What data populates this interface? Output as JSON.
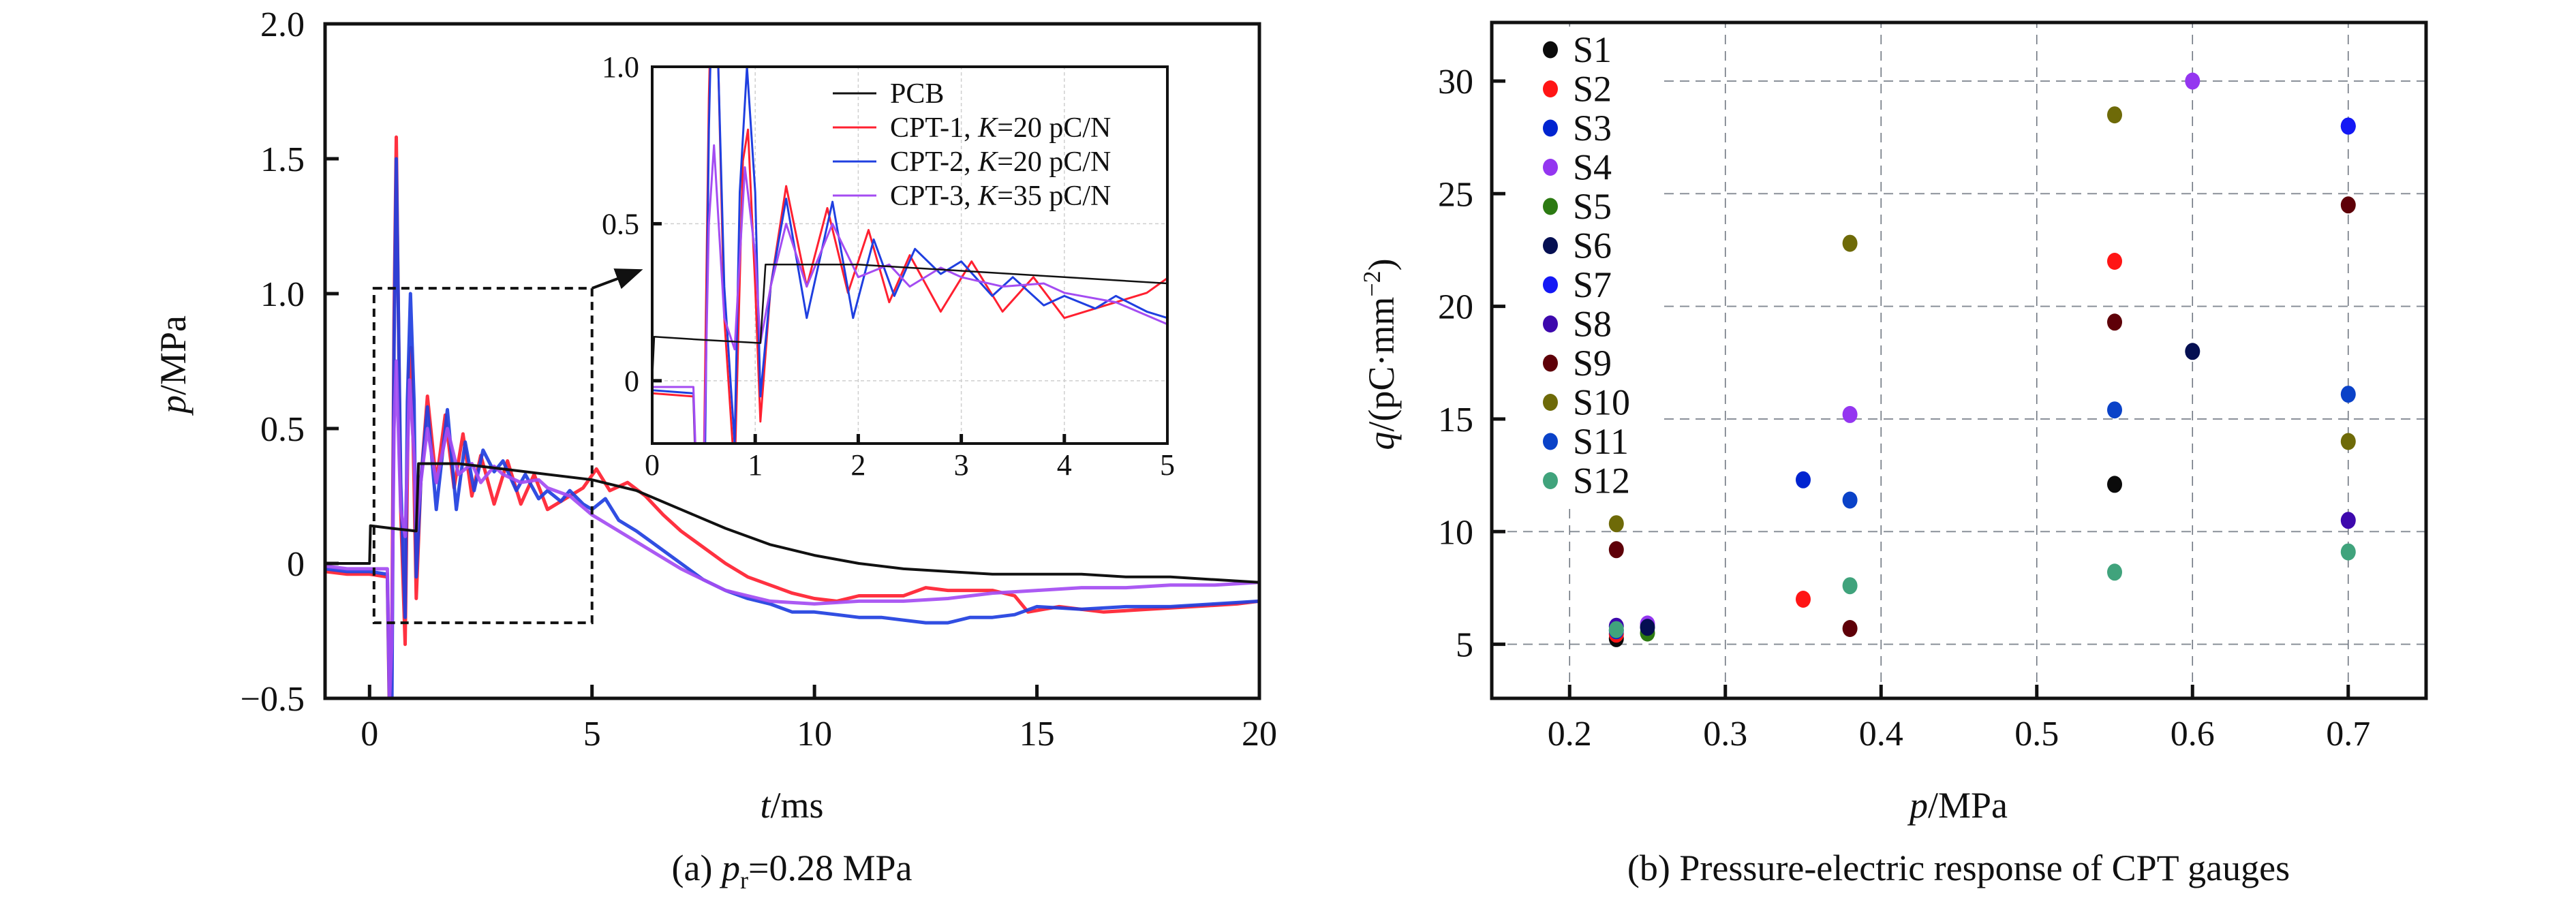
{
  "figure": {
    "caption_a": "(a) p r=0.28 MPa",
    "caption_a_parts": {
      "prefix": "(a) ",
      "var": "p",
      "sub": "r",
      "suffix": "=0.28 MPa"
    },
    "caption_b": "(b) Pressure-electric response of CPT gauges"
  },
  "chart_data": [
    {
      "id": "a",
      "type": "line",
      "title": "(a) p_r=0.28 MPa",
      "xlabel": {
        "var": "t",
        "unit": "/ms"
      },
      "ylabel": {
        "var": "p",
        "unit": "/MPa"
      },
      "xlim": [
        -1,
        20
      ],
      "ylim": [
        -0.5,
        2.0
      ],
      "xticks": [
        0,
        5,
        10,
        15,
        20
      ],
      "xtick_labels": [
        "0",
        "5",
        "10",
        "15",
        "20"
      ],
      "yticks": [
        -0.5,
        0,
        0.5,
        1.0,
        1.5,
        2.0
      ],
      "ytick_labels": [
        "−0.5",
        "0",
        "0.5",
        "1.0",
        "1.5",
        "2.0"
      ],
      "grid": false,
      "zoom_box": {
        "x": [
          0.1,
          5.0
        ],
        "y": [
          -0.22,
          1.02
        ]
      },
      "legend": {
        "placement": "inset-top-right",
        "entries": [
          {
            "label_pre": "PCB",
            "label_k": "",
            "label_post": ""
          },
          {
            "label_pre": "CPT-1, ",
            "label_k": "K",
            "label_post": "=20 pC/N"
          },
          {
            "label_pre": "CPT-2, ",
            "label_k": "K",
            "label_post": "=20 pC/N"
          },
          {
            "label_pre": "CPT-3, ",
            "label_k": "K",
            "label_post": "=35 pC/N"
          }
        ]
      },
      "series": [
        {
          "name": "CPT-1, K=20 pC/N",
          "color": "#ff2030",
          "points": [
            [
              -1,
              -0.03
            ],
            [
              -0.5,
              -0.04
            ],
            [
              0,
              -0.04
            ],
            [
              0.4,
              -0.05
            ],
            [
              0.45,
              -0.6
            ],
            [
              0.5,
              -0.3
            ],
            [
              0.55,
              0.9
            ],
            [
              0.6,
              1.58
            ],
            [
              0.7,
              0.2
            ],
            [
              0.8,
              -0.3
            ],
            [
              0.88,
              0.7
            ],
            [
              0.93,
              0.8
            ],
            [
              1.0,
              0.3
            ],
            [
              1.05,
              -0.13
            ],
            [
              1.15,
              0.3
            ],
            [
              1.3,
              0.62
            ],
            [
              1.5,
              0.3
            ],
            [
              1.7,
              0.55
            ],
            [
              1.9,
              0.28
            ],
            [
              2.1,
              0.48
            ],
            [
              2.3,
              0.25
            ],
            [
              2.5,
              0.4
            ],
            [
              2.8,
              0.22
            ],
            [
              3.1,
              0.38
            ],
            [
              3.4,
              0.22
            ],
            [
              3.7,
              0.33
            ],
            [
              4.0,
              0.2
            ],
            [
              4.4,
              0.24
            ],
            [
              4.8,
              0.28
            ],
            [
              5.1,
              0.35
            ],
            [
              5.4,
              0.27
            ],
            [
              5.8,
              0.3
            ],
            [
              6.2,
              0.25
            ],
            [
              6.6,
              0.18
            ],
            [
              7,
              0.12
            ],
            [
              7.5,
              0.06
            ],
            [
              8,
              0.0
            ],
            [
              8.5,
              -0.05
            ],
            [
              9,
              -0.08
            ],
            [
              9.5,
              -0.11
            ],
            [
              10,
              -0.13
            ],
            [
              10.5,
              -0.14
            ],
            [
              11,
              -0.12
            ],
            [
              12,
              -0.12
            ],
            [
              12.5,
              -0.09
            ],
            [
              13,
              -0.1
            ],
            [
              14,
              -0.1
            ],
            [
              14.5,
              -0.12
            ],
            [
              14.8,
              -0.18
            ],
            [
              15.5,
              -0.16
            ],
            [
              16.5,
              -0.18
            ],
            [
              17.5,
              -0.17
            ],
            [
              18.5,
              -0.16
            ],
            [
              19.5,
              -0.15
            ],
            [
              20,
              -0.14
            ]
          ]
        },
        {
          "name": "CPT-2, K=20 pC/N",
          "color": "#1f3fe0",
          "points": [
            [
              -1,
              -0.02
            ],
            [
              -0.5,
              -0.03
            ],
            [
              0,
              -0.03
            ],
            [
              0.4,
              -0.04
            ],
            [
              0.45,
              -0.55
            ],
            [
              0.5,
              -0.6
            ],
            [
              0.55,
              0.8
            ],
            [
              0.6,
              1.5
            ],
            [
              0.7,
              0.3
            ],
            [
              0.8,
              -0.2
            ],
            [
              0.85,
              0.6
            ],
            [
              0.92,
              1.0
            ],
            [
              1.0,
              0.6
            ],
            [
              1.05,
              -0.05
            ],
            [
              1.15,
              0.3
            ],
            [
              1.3,
              0.58
            ],
            [
              1.5,
              0.2
            ],
            [
              1.75,
              0.57
            ],
            [
              1.95,
              0.2
            ],
            [
              2.15,
              0.45
            ],
            [
              2.35,
              0.27
            ],
            [
              2.55,
              0.42
            ],
            [
              2.8,
              0.34
            ],
            [
              3.0,
              0.38
            ],
            [
              3.3,
              0.27
            ],
            [
              3.5,
              0.33
            ],
            [
              3.8,
              0.24
            ],
            [
              4.0,
              0.27
            ],
            [
              4.3,
              0.23
            ],
            [
              4.5,
              0.27
            ],
            [
              4.8,
              0.22
            ],
            [
              5.0,
              0.2
            ],
            [
              5.3,
              0.24
            ],
            [
              5.6,
              0.16
            ],
            [
              6,
              0.12
            ],
            [
              6.5,
              0.06
            ],
            [
              7,
              0.0
            ],
            [
              7.5,
              -0.06
            ],
            [
              8,
              -0.1
            ],
            [
              8.5,
              -0.13
            ],
            [
              9,
              -0.15
            ],
            [
              9.5,
              -0.18
            ],
            [
              10,
              -0.18
            ],
            [
              10.5,
              -0.19
            ],
            [
              11,
              -0.2
            ],
            [
              11.5,
              -0.2
            ],
            [
              12,
              -0.21
            ],
            [
              12.5,
              -0.22
            ],
            [
              13,
              -0.22
            ],
            [
              13.5,
              -0.2
            ],
            [
              14,
              -0.2
            ],
            [
              14.5,
              -0.19
            ],
            [
              15,
              -0.16
            ],
            [
              16,
              -0.17
            ],
            [
              17,
              -0.16
            ],
            [
              18,
              -0.16
            ],
            [
              19,
              -0.15
            ],
            [
              20,
              -0.14
            ]
          ]
        },
        {
          "name": "CPT-3, K=35 pC/N",
          "color": "#a44cf2",
          "points": [
            [
              -1,
              -0.01
            ],
            [
              -0.5,
              -0.02
            ],
            [
              0,
              -0.02
            ],
            [
              0.4,
              -0.02
            ],
            [
              0.45,
              -0.5
            ],
            [
              0.5,
              -0.3
            ],
            [
              0.55,
              0.5
            ],
            [
              0.6,
              0.75
            ],
            [
              0.7,
              0.2
            ],
            [
              0.8,
              0.1
            ],
            [
              0.9,
              0.68
            ],
            [
              1.0,
              0.4
            ],
            [
              1.05,
              0.12
            ],
            [
              1.15,
              0.3
            ],
            [
              1.3,
              0.5
            ],
            [
              1.5,
              0.3
            ],
            [
              1.75,
              0.5
            ],
            [
              2.0,
              0.33
            ],
            [
              2.3,
              0.37
            ],
            [
              2.5,
              0.3
            ],
            [
              2.8,
              0.36
            ],
            [
              3.0,
              0.33
            ],
            [
              3.4,
              0.3
            ],
            [
              3.8,
              0.31
            ],
            [
              4.0,
              0.28
            ],
            [
              4.5,
              0.25
            ],
            [
              5.0,
              0.18
            ],
            [
              5.5,
              0.13
            ],
            [
              6,
              0.08
            ],
            [
              6.5,
              0.03
            ],
            [
              7,
              -0.02
            ],
            [
              7.5,
              -0.06
            ],
            [
              8,
              -0.1
            ],
            [
              8.5,
              -0.12
            ],
            [
              9,
              -0.14
            ],
            [
              10,
              -0.15
            ],
            [
              11,
              -0.14
            ],
            [
              12,
              -0.14
            ],
            [
              13,
              -0.13
            ],
            [
              14,
              -0.11
            ],
            [
              15,
              -0.1
            ],
            [
              16,
              -0.09
            ],
            [
              17,
              -0.09
            ],
            [
              18,
              -0.08
            ],
            [
              19,
              -0.08
            ],
            [
              20,
              -0.07
            ]
          ]
        },
        {
          "name": "PCB",
          "color": "#111111",
          "points": [
            [
              -1,
              0
            ],
            [
              0,
              0
            ],
            [
              0.02,
              0.14
            ],
            [
              0.5,
              0.13
            ],
            [
              1.05,
              0.12
            ],
            [
              1.1,
              0.37
            ],
            [
              2,
              0.37
            ],
            [
              3,
              0.35
            ],
            [
              4,
              0.33
            ],
            [
              5,
              0.31
            ],
            [
              6,
              0.27
            ],
            [
              7,
              0.2
            ],
            [
              8,
              0.13
            ],
            [
              9,
              0.07
            ],
            [
              10,
              0.03
            ],
            [
              11,
              0.0
            ],
            [
              12,
              -0.02
            ],
            [
              13,
              -0.03
            ],
            [
              14,
              -0.04
            ],
            [
              15,
              -0.04
            ],
            [
              16,
              -0.04
            ],
            [
              17,
              -0.05
            ],
            [
              18,
              -0.05
            ],
            [
              19,
              -0.06
            ],
            [
              20,
              -0.07
            ]
          ]
        }
      ],
      "inset": {
        "xlim": [
          0,
          5
        ],
        "ylim": [
          -0.2,
          1.0
        ],
        "xticks": [
          0,
          1,
          2,
          3,
          4,
          5
        ],
        "xtick_labels": [
          "0",
          "1",
          "2",
          "3",
          "4",
          "5"
        ],
        "yticks": [
          0,
          0.5,
          1.0
        ],
        "ytick_labels": [
          "0",
          "0.5",
          "1.0"
        ],
        "grid": true
      }
    },
    {
      "id": "b",
      "type": "scatter",
      "title": "(b) Pressure-electric response of CPT gauges",
      "xlabel": {
        "var": "p",
        "unit": "/MPa"
      },
      "ylabel": {
        "var": "q",
        "unit": "/(pC·mm",
        "sup": "−2",
        "close": ")"
      },
      "xlim": [
        0.15,
        0.75
      ],
      "ylim": [
        2.6,
        32.6
      ],
      "xticks": [
        0.2,
        0.3,
        0.4,
        0.5,
        0.6,
        0.7
      ],
      "xtick_labels": [
        "0.2",
        "0.3",
        "0.4",
        "0.5",
        "0.6",
        "0.7"
      ],
      "yticks": [
        5,
        10,
        15,
        20,
        25,
        30
      ],
      "ytick_labels": [
        "5",
        "10",
        "15",
        "20",
        "25",
        "30"
      ],
      "grid": true,
      "legend": {
        "placement": "top-left"
      },
      "series": [
        {
          "name": "S1",
          "color": "#0b0b0b",
          "points": [
            [
              0.23,
              5.25
            ],
            [
              0.55,
              12.1
            ]
          ]
        },
        {
          "name": "S2",
          "color": "#ff1515",
          "points": [
            [
              0.23,
              5.45
            ],
            [
              0.35,
              7.0
            ],
            [
              0.55,
              22.0
            ]
          ]
        },
        {
          "name": "S3",
          "color": "#0024d0",
          "points": [
            [
              0.23,
              5.6
            ],
            [
              0.35,
              12.3
            ],
            [
              0.7,
              28.0
            ]
          ]
        },
        {
          "name": "S4",
          "color": "#9436f0",
          "points": [
            [
              0.25,
              5.9
            ],
            [
              0.38,
              15.2
            ],
            [
              0.6,
              30.0
            ]
          ]
        },
        {
          "name": "S5",
          "color": "#2c7a12",
          "points": [
            [
              0.25,
              5.5
            ]
          ]
        },
        {
          "name": "S6",
          "color": "#050f52",
          "points": [
            [
              0.25,
              5.75
            ],
            [
              0.6,
              18.0
            ]
          ]
        },
        {
          "name": "S7",
          "color": "#1418f5",
          "points": [
            [
              0.7,
              28.0
            ]
          ]
        },
        {
          "name": "S8",
          "color": "#3d08ad",
          "points": [
            [
              0.23,
              5.8
            ],
            [
              0.7,
              10.5
            ]
          ]
        },
        {
          "name": "S9",
          "color": "#5e0008",
          "points": [
            [
              0.23,
              9.2
            ],
            [
              0.38,
              5.7
            ],
            [
              0.55,
              19.3
            ],
            [
              0.7,
              24.5
            ]
          ]
        },
        {
          "name": "S10",
          "color": "#6e6a08",
          "points": [
            [
              0.23,
              10.35
            ],
            [
              0.38,
              22.8
            ],
            [
              0.55,
              28.5
            ],
            [
              0.7,
              14.0
            ]
          ]
        },
        {
          "name": "S11",
          "color": "#0a42c8",
          "points": [
            [
              0.38,
              11.4
            ],
            [
              0.55,
              15.4
            ],
            [
              0.7,
              16.1
            ]
          ]
        },
        {
          "name": "S12",
          "color": "#40a37c",
          "points": [
            [
              0.23,
              5.65
            ],
            [
              0.38,
              7.6
            ],
            [
              0.55,
              8.2
            ],
            [
              0.7,
              9.1
            ]
          ]
        }
      ]
    }
  ]
}
